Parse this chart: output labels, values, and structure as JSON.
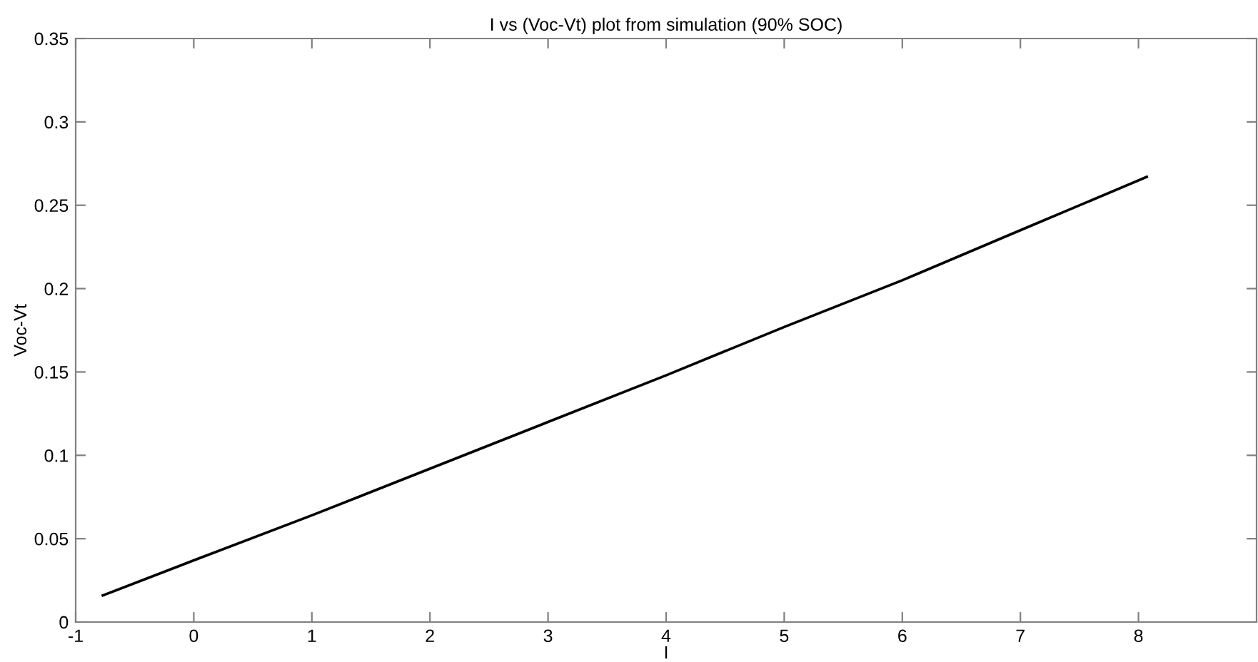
{
  "chart_data": {
    "type": "line",
    "title": "I vs (Voc-Vt) plot from simulation (90% SOC)",
    "xlabel": "I",
    "ylabel": "Voc-Vt",
    "x": [
      -0.77,
      0,
      1,
      2,
      3,
      4,
      5,
      6,
      7,
      8.07
    ],
    "series": [
      {
        "color": "#000000",
        "values": [
          0.016,
          0.037,
          0.064,
          0.092,
          0.12,
          0.148,
          0.177,
          0.205,
          0.235,
          0.267
        ]
      }
    ],
    "xlim": [
      -1,
      9
    ],
    "xticks": [
      -1,
      0,
      1,
      2,
      3,
      4,
      5,
      6,
      7,
      8
    ],
    "ylim": [
      0,
      0.35
    ],
    "yticks": [
      0,
      0.05,
      0.1,
      0.15,
      0.2,
      0.25,
      0.3,
      0.35
    ],
    "grid": false,
    "legend": false,
    "marker": "none",
    "line_style": "solid"
  }
}
